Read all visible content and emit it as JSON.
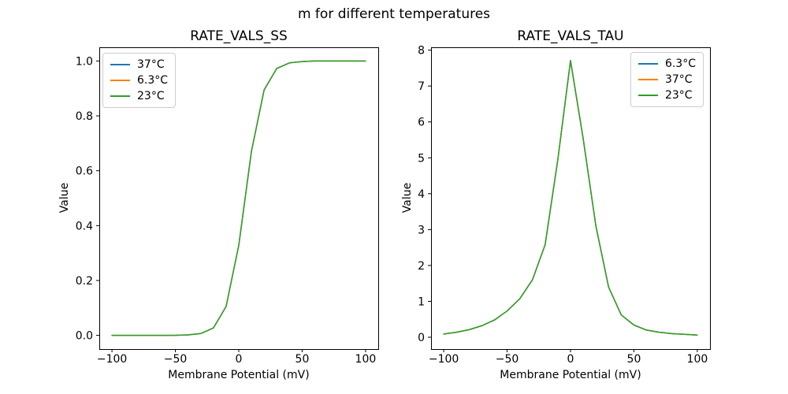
{
  "figure": {
    "suptitle": "m for different temperatures",
    "background": "#ffffff",
    "text_color": "#000000"
  },
  "chart_data": [
    {
      "type": "line",
      "title": "RATE_VALS_SS",
      "xlabel": "Membrane Potential (mV)",
      "ylabel": "Value",
      "legend_position": "upper-left",
      "grid": false,
      "xlim": [
        -110,
        110
      ],
      "ylim": [
        -0.05,
        1.05
      ],
      "xticks": [
        -100,
        -50,
        0,
        50,
        100
      ],
      "xtick_labels": [
        "−100",
        "−50",
        "0",
        "50",
        "100"
      ],
      "yticks": [
        0.0,
        0.2,
        0.4,
        0.6,
        0.8,
        1.0
      ],
      "ytick_labels": [
        "0.0",
        "0.2",
        "0.4",
        "0.6",
        "0.8",
        "1.0"
      ],
      "x": [
        -100,
        -90,
        -80,
        -70,
        -60,
        -50,
        -40,
        -30,
        -20,
        -10,
        0,
        10,
        20,
        30,
        40,
        50,
        60,
        70,
        80,
        90,
        100
      ],
      "series": [
        {
          "name": "37°C",
          "color": "#1f77b4",
          "values": [
            0.0,
            0.0,
            0.0,
            0.0,
            0.0001,
            0.0004,
            0.0016,
            0.0066,
            0.027,
            0.105,
            0.328,
            0.671,
            0.895,
            0.973,
            0.993,
            0.998,
            1.0,
            1.0,
            1.0,
            1.0,
            1.0
          ]
        },
        {
          "name": "6.3°C",
          "color": "#ff7f0e",
          "values": [
            0.0,
            0.0,
            0.0,
            0.0,
            0.0001,
            0.0004,
            0.0016,
            0.0066,
            0.027,
            0.105,
            0.328,
            0.671,
            0.895,
            0.973,
            0.993,
            0.998,
            1.0,
            1.0,
            1.0,
            1.0,
            1.0
          ]
        },
        {
          "name": "23°C",
          "color": "#2ca02c",
          "values": [
            0.0,
            0.0,
            0.0,
            0.0,
            0.0001,
            0.0004,
            0.0016,
            0.0066,
            0.027,
            0.105,
            0.328,
            0.671,
            0.895,
            0.973,
            0.993,
            0.998,
            1.0,
            1.0,
            1.0,
            1.0,
            1.0
          ]
        }
      ]
    },
    {
      "type": "line",
      "title": "RATE_VALS_TAU",
      "xlabel": "Membrane Potential (mV)",
      "ylabel": "Value",
      "legend_position": "upper-right",
      "grid": false,
      "xlim": [
        -110,
        110
      ],
      "ylim": [
        -0.33,
        8.08
      ],
      "xticks": [
        -100,
        -50,
        0,
        50,
        100
      ],
      "xtick_labels": [
        "−100",
        "−50",
        "0",
        "50",
        "100"
      ],
      "yticks": [
        0,
        1,
        2,
        3,
        4,
        5,
        6,
        7,
        8
      ],
      "ytick_labels": [
        "0",
        "1",
        "2",
        "3",
        "4",
        "5",
        "6",
        "7",
        "8"
      ],
      "x": [
        -100,
        -90,
        -80,
        -70,
        -60,
        -50,
        -40,
        -30,
        -20,
        -10,
        0,
        10,
        20,
        30,
        40,
        50,
        60,
        70,
        80,
        90,
        100
      ],
      "series": [
        {
          "name": "6.3°C",
          "color": "#1f77b4",
          "values": [
            0.09,
            0.14,
            0.21,
            0.32,
            0.48,
            0.73,
            1.07,
            1.6,
            2.58,
            4.95,
            7.71,
            5.53,
            3.1,
            1.4,
            0.62,
            0.34,
            0.2,
            0.14,
            0.1,
            0.08,
            0.06
          ]
        },
        {
          "name": "37°C",
          "color": "#ff7f0e",
          "values": [
            0.09,
            0.14,
            0.21,
            0.32,
            0.48,
            0.73,
            1.07,
            1.6,
            2.58,
            4.95,
            7.71,
            5.53,
            3.1,
            1.4,
            0.62,
            0.34,
            0.2,
            0.14,
            0.1,
            0.08,
            0.06
          ]
        },
        {
          "name": "23°C",
          "color": "#2ca02c",
          "values": [
            0.09,
            0.14,
            0.21,
            0.32,
            0.48,
            0.73,
            1.07,
            1.6,
            2.58,
            4.95,
            7.71,
            5.53,
            3.1,
            1.4,
            0.62,
            0.34,
            0.2,
            0.14,
            0.1,
            0.08,
            0.06
          ]
        }
      ]
    }
  ]
}
